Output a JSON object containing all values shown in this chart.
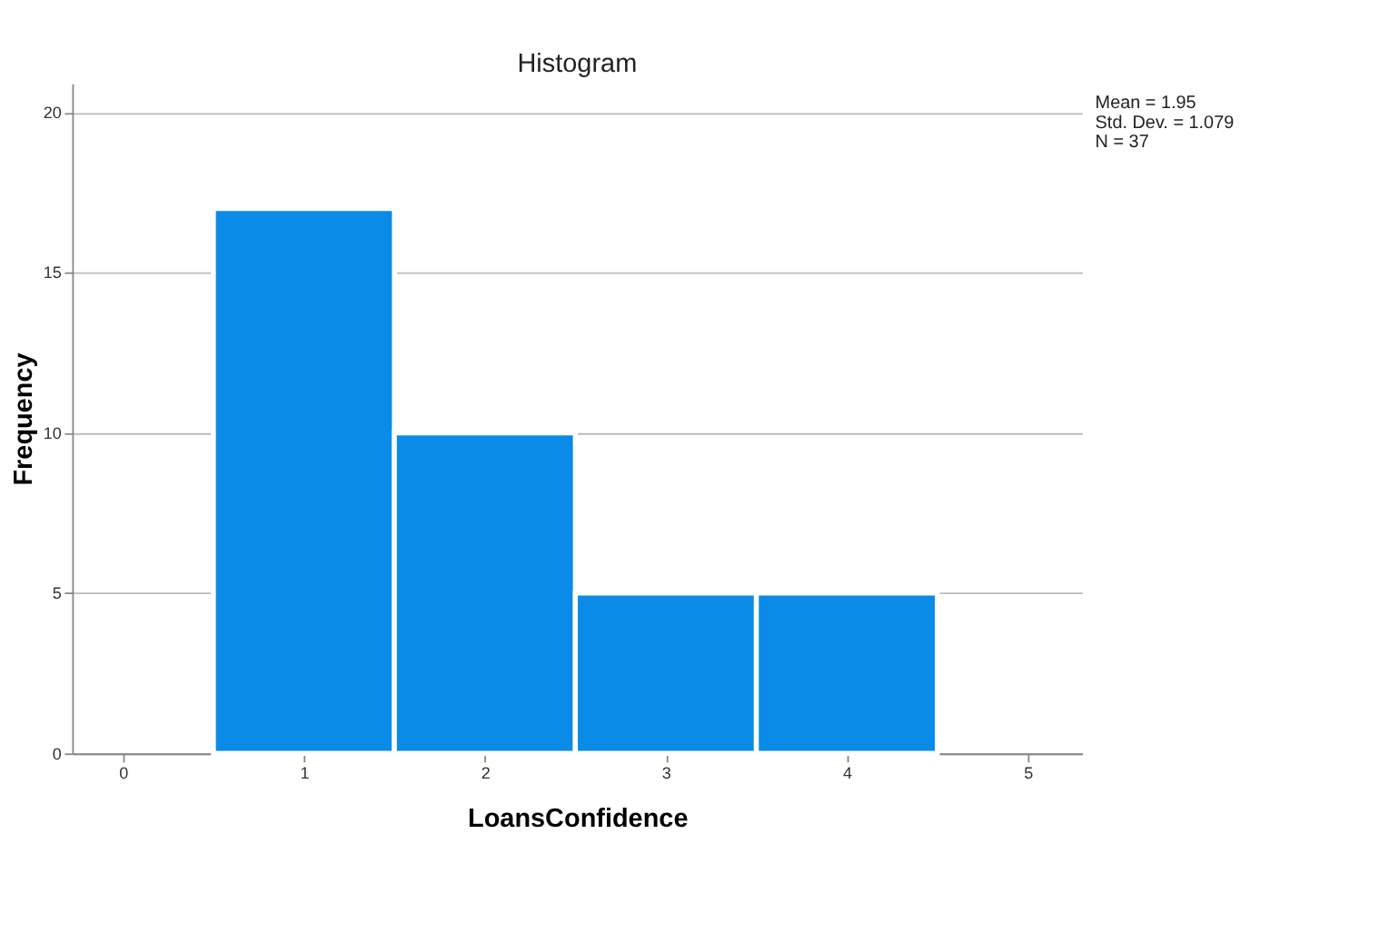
{
  "chart_data": {
    "type": "histogram",
    "title": "Histogram",
    "xlabel": "LoansConfidence",
    "ylabel": "Frequency",
    "bins": [
      0.5,
      1.5,
      2.5,
      3.5,
      4.5
    ],
    "values": [
      17,
      10,
      5,
      5
    ],
    "color": "#0b8be8",
    "xlim": [
      -0.28,
      5.3
    ],
    "xticks": [
      0,
      1,
      2,
      3,
      4,
      5
    ],
    "ylim": [
      0,
      20.9
    ],
    "yticks": [
      0,
      5,
      10,
      15,
      20
    ],
    "grid": "y",
    "annotations": [
      "Mean = 1.95",
      "Std. Dev. = 1.079",
      "N = 37"
    ]
  }
}
